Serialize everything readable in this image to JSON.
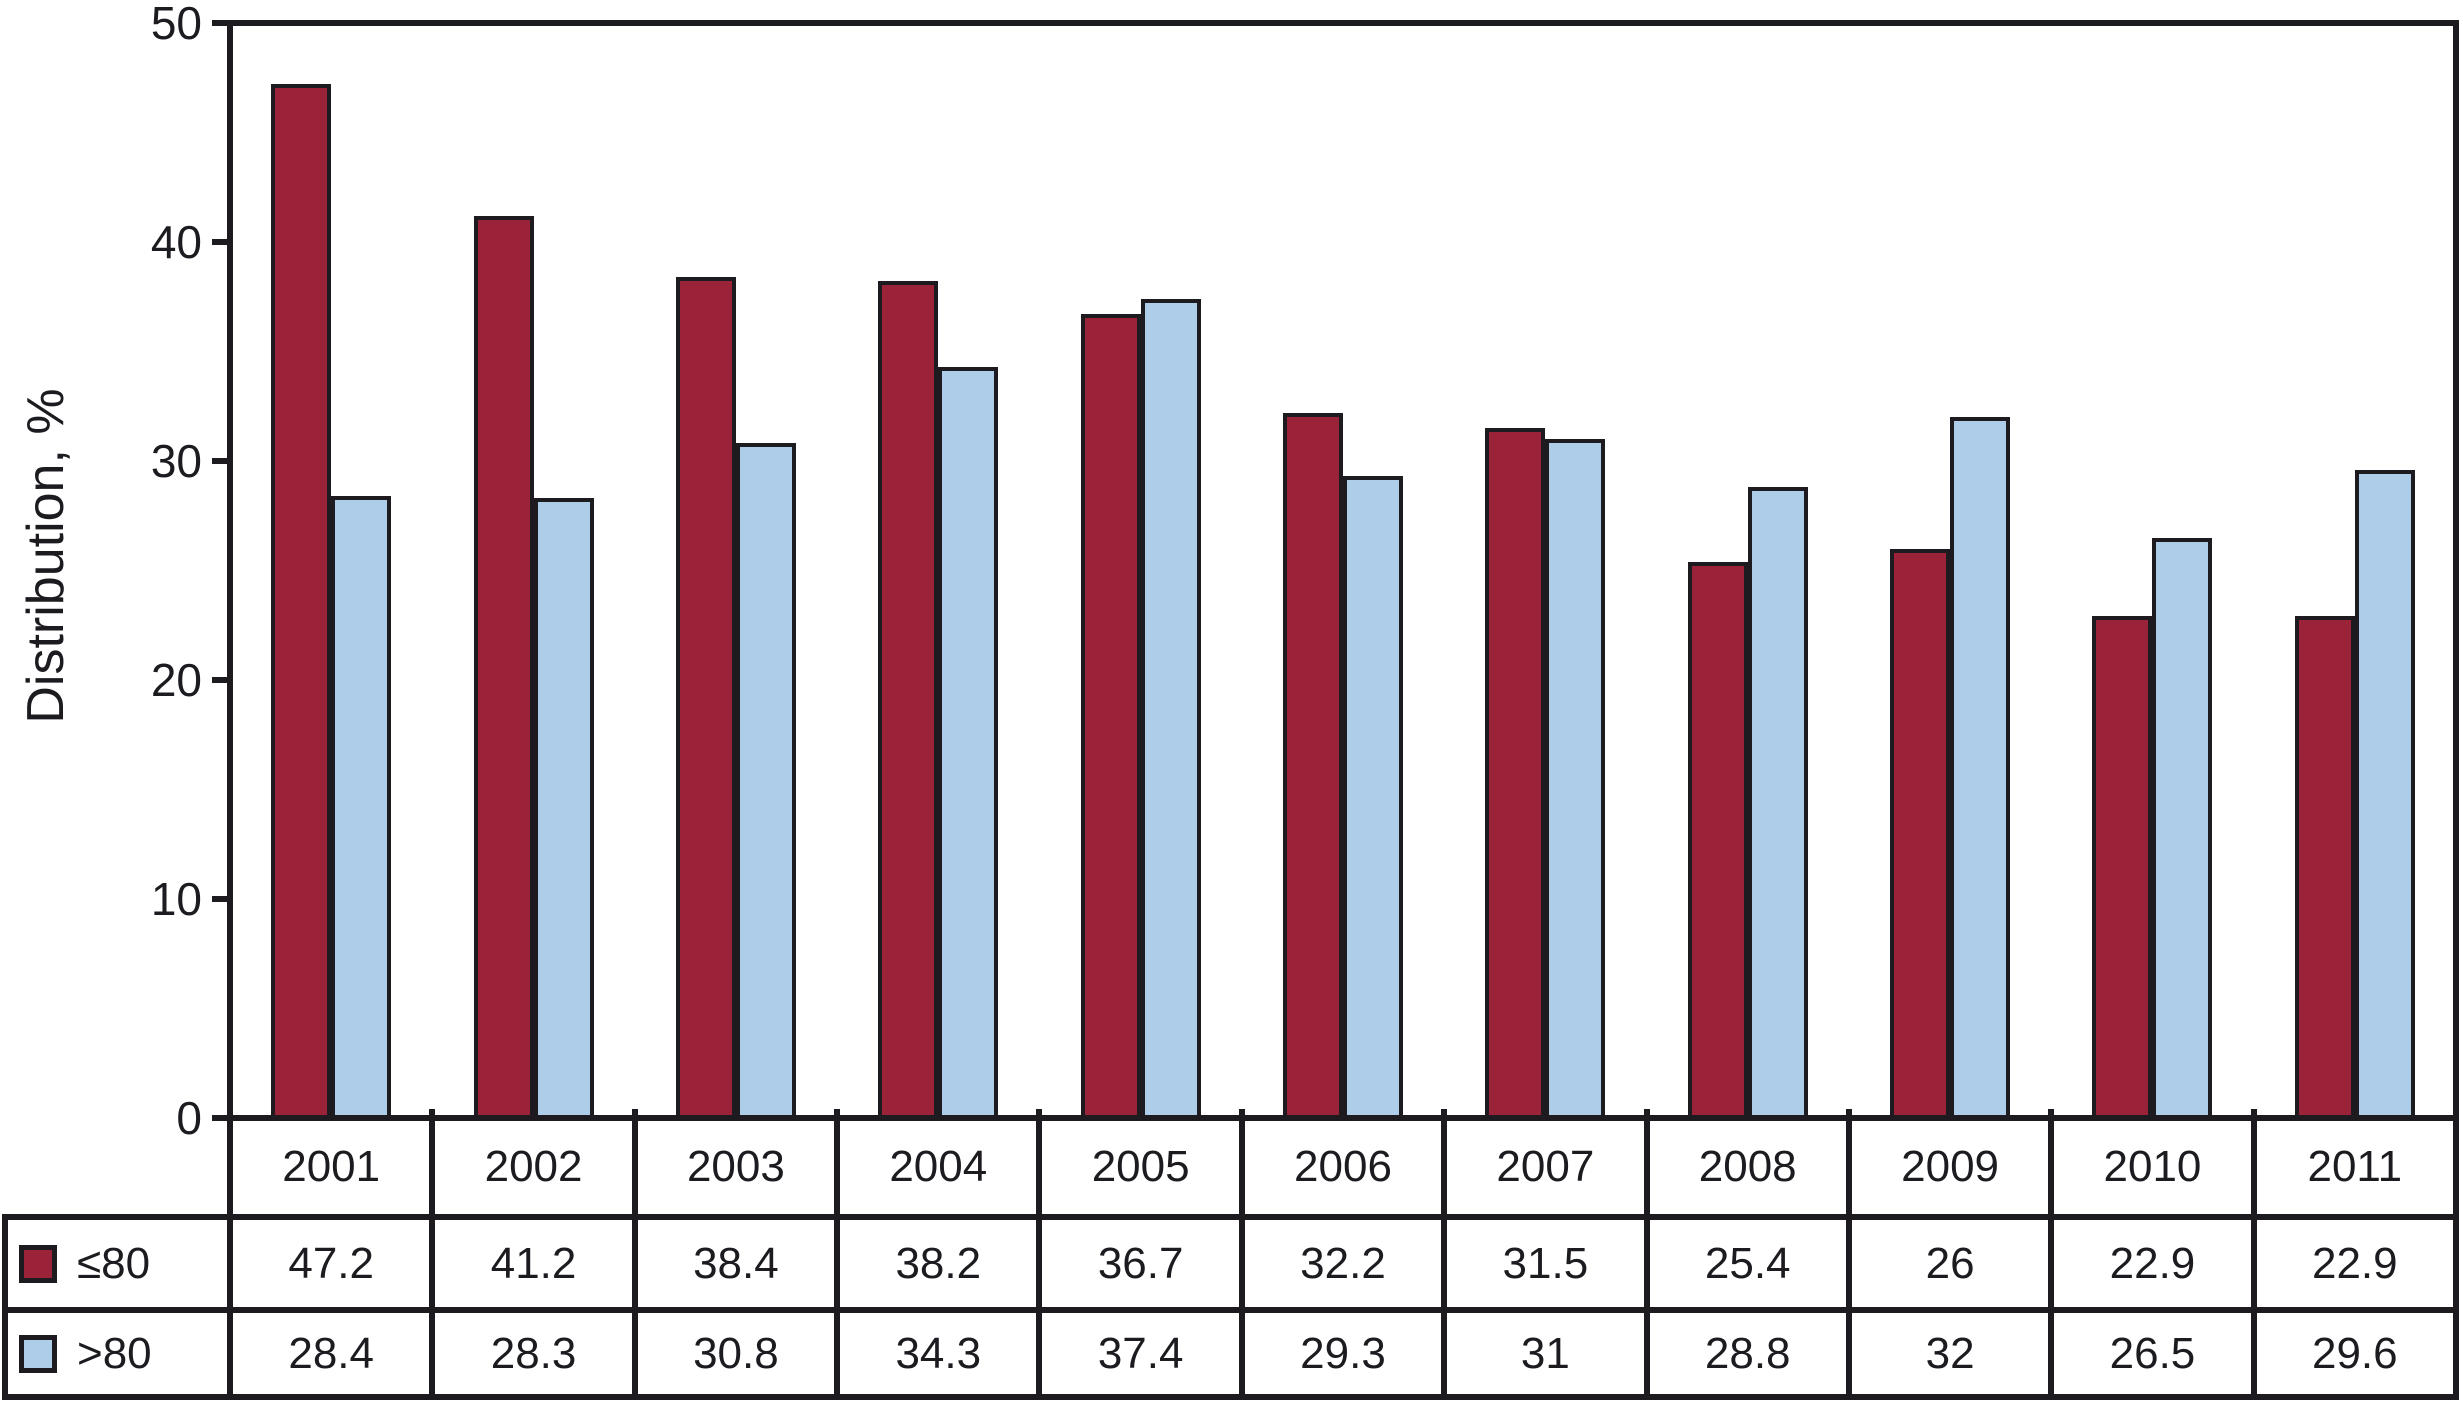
{
  "figure": {
    "y_axis_title": "Distribution, %"
  },
  "chart_data": {
    "type": "bar",
    "title": "",
    "xlabel": "",
    "ylabel": "Distribution, %",
    "ylim": [
      0,
      50
    ],
    "yticks": [
      0,
      10,
      20,
      30,
      40,
      50
    ],
    "grid": false,
    "legend_position": "table-left-column",
    "categories": [
      "2001",
      "2002",
      "2003",
      "2004",
      "2005",
      "2006",
      "2007",
      "2008",
      "2009",
      "2010",
      "2011"
    ],
    "series": [
      {
        "key": "le80",
        "name": "≤80",
        "color": "#9b2339",
        "values": [
          47.2,
          41.2,
          38.4,
          38.2,
          36.7,
          32.2,
          31.5,
          25.4,
          26,
          22.9,
          22.9
        ]
      },
      {
        "key": "gt80",
        "name": ">80",
        "color": "#aecde9",
        "values": [
          28.4,
          28.3,
          30.8,
          34.3,
          37.4,
          29.3,
          31,
          28.8,
          32,
          26.5,
          29.6
        ]
      }
    ]
  }
}
